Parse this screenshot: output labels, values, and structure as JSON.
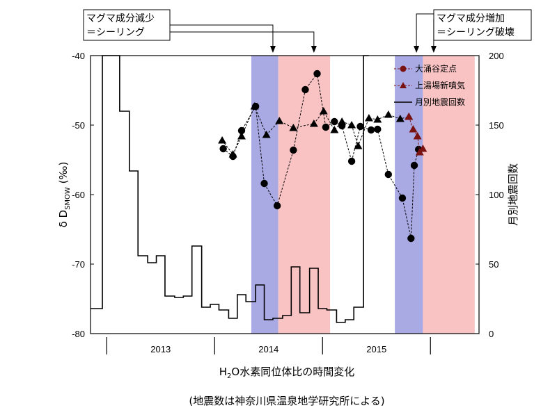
{
  "chart_data": {
    "type": "line",
    "xlabel_prefix": "H",
    "xlabel_sub": "2",
    "xlabel_suffix": "O水素同位体比の時間変化",
    "ylabel_left_delta": "δ",
    "ylabel_left_main": "D",
    "ylabel_left_sub": "SMOW",
    "ylabel_left_unit": "(‰)",
    "ylabel_right": "月別地震回数",
    "caption": "(地震数は神奈川県温泉地学研究所による)",
    "ylim_left": [
      -80,
      -40
    ],
    "ylim_right": [
      0,
      200
    ],
    "left_ticks": [
      "-40",
      "-50",
      "-60",
      "-70",
      "-80"
    ],
    "right_ticks": [
      "200",
      "150",
      "100",
      "50",
      "0"
    ],
    "year_labels": [
      {
        "year": 2013,
        "label": "2013"
      },
      {
        "year": 2014,
        "label": "2014"
      },
      {
        "year": 2015,
        "label": "2015"
      }
    ],
    "year_boundaries": [
      2012.0,
      2013.0,
      2014.0,
      2015.0
    ],
    "bands": [
      {
        "kind": "decrease",
        "start": 2013.49,
        "end": 2013.74,
        "color": "#a9aae4"
      },
      {
        "kind": "increase",
        "start": 2013.74,
        "end": 2014.22,
        "color": "#f9c3c3"
      },
      {
        "kind": "decrease",
        "start": 2014.82,
        "end": 2015.08,
        "color": "#a9aae4"
      },
      {
        "kind": "increase",
        "start": 2015.08,
        "end": 2015.56,
        "color": "#f9c3c3"
      }
    ],
    "annotations": [
      {
        "line1": "マグマ成分減少",
        "line2": "＝シーリング",
        "targets": [
          2013.69,
          2014.07
        ]
      },
      {
        "line1": "マグマ成分増加",
        "line2": "＝シーリング破壊",
        "targets": [
          2015.18,
          2015.02
        ]
      }
    ],
    "series": [
      {
        "name": "大涌谷定点",
        "marker": "circle",
        "color": "#000000",
        "line_color": "#000000",
        "dashed": true,
        "points": [
          {
            "x": 2013.23,
            "y": -53.4
          },
          {
            "x": 2013.32,
            "y": -54.5
          },
          {
            "x": 2013.4,
            "y": -50.8
          },
          {
            "x": 2013.53,
            "y": -47.3
          },
          {
            "x": 2013.61,
            "y": -58.4
          },
          {
            "x": 2013.73,
            "y": -61.6
          },
          {
            "x": 2013.88,
            "y": -53.6
          },
          {
            "x": 2013.99,
            "y": -44.9
          },
          {
            "x": 2014.1,
            "y": -42.6
          },
          {
            "x": 2014.18,
            "y": -50.3
          },
          {
            "x": 2014.26,
            "y": -49.5
          },
          {
            "x": 2014.33,
            "y": -50.1
          },
          {
            "x": 2014.42,
            "y": -55.2
          },
          {
            "x": 2014.5,
            "y": -50.2
          },
          {
            "x": 2014.6,
            "y": -50.7
          },
          {
            "x": 2014.66,
            "y": -50.6
          },
          {
            "x": 2014.76,
            "y": -57.1
          },
          {
            "x": 2014.89,
            "y": -60.5
          },
          {
            "x": 2014.97,
            "y": -66.3
          },
          {
            "x": 2015.0,
            "y": -55.8
          },
          {
            "x": 2015.04,
            "y": -53.5
          }
        ]
      },
      {
        "name": "上湯場新噴気",
        "marker": "triangle",
        "color": "#000000",
        "line_color": "#000000",
        "dashed": true,
        "points": [
          {
            "x": 2013.22,
            "y": -52.2
          },
          {
            "x": 2013.32,
            "y": -54.2
          },
          {
            "x": 2013.4,
            "y": -51.6
          },
          {
            "x": 2013.52,
            "y": -47.3
          },
          {
            "x": 2013.63,
            "y": -51.4
          },
          {
            "x": 2013.75,
            "y": -49.4
          },
          {
            "x": 2013.88,
            "y": -50.4
          },
          {
            "x": 2014.07,
            "y": -49.8
          },
          {
            "x": 2014.16,
            "y": -48.0
          },
          {
            "x": 2014.26,
            "y": -50.7
          },
          {
            "x": 2014.33,
            "y": -49.5
          },
          {
            "x": 2014.42,
            "y": -50.0
          },
          {
            "x": 2014.48,
            "y": -53.0
          },
          {
            "x": 2014.58,
            "y": -49.0
          },
          {
            "x": 2014.66,
            "y": -49.2
          },
          {
            "x": 2014.76,
            "y": -48.5
          },
          {
            "x": 2014.87,
            "y": -49.1
          },
          {
            "x": 2014.95,
            "y": -48.8
          }
        ]
      },
      {
        "name": "上湯場新噴気",
        "marker": "triangle",
        "color": "#7a1212",
        "line_color": "#7a1212",
        "dashed": true,
        "points": [
          {
            "x": 2014.95,
            "y": -48.8
          },
          {
            "x": 2014.99,
            "y": -50.6
          },
          {
            "x": 2015.03,
            "y": -51.6
          },
          {
            "x": 2015.05,
            "y": -53.9
          },
          {
            "x": 2015.08,
            "y": -53.4
          }
        ]
      },
      {
        "name": "月別地震回数",
        "axis": "right",
        "type": "step",
        "color": "#000000",
        "points": [
          {
            "x": 2012.0,
            "y": 18
          },
          {
            "x": 2012.11,
            "y": 200
          },
          {
            "x": 2012.19,
            "y": 200
          },
          {
            "x": 2012.27,
            "y": 160
          },
          {
            "x": 2012.36,
            "y": 117
          },
          {
            "x": 2012.44,
            "y": 56
          },
          {
            "x": 2012.53,
            "y": 51
          },
          {
            "x": 2012.61,
            "y": 56
          },
          {
            "x": 2012.69,
            "y": 27
          },
          {
            "x": 2012.78,
            "y": 26
          },
          {
            "x": 2012.86,
            "y": 27
          },
          {
            "x": 2012.94,
            "y": 63
          },
          {
            "x": 2013.03,
            "y": 19
          },
          {
            "x": 2013.11,
            "y": 21
          },
          {
            "x": 2013.19,
            "y": 17
          },
          {
            "x": 2013.28,
            "y": 11
          },
          {
            "x": 2013.36,
            "y": 28
          },
          {
            "x": 2013.44,
            "y": 23
          },
          {
            "x": 2013.53,
            "y": 35
          },
          {
            "x": 2013.61,
            "y": 10
          },
          {
            "x": 2013.69,
            "y": 11
          },
          {
            "x": 2013.78,
            "y": 13
          },
          {
            "x": 2013.86,
            "y": 48
          },
          {
            "x": 2013.94,
            "y": 15
          },
          {
            "x": 2014.03,
            "y": 47
          },
          {
            "x": 2014.11,
            "y": 18
          },
          {
            "x": 2014.19,
            "y": 17
          },
          {
            "x": 2014.28,
            "y": 8
          },
          {
            "x": 2014.36,
            "y": 10
          },
          {
            "x": 2014.44,
            "y": 19
          },
          {
            "x": 2014.53,
            "y": 200
          },
          {
            "x": 2014.58,
            "y": 200
          }
        ],
        "xlim": [
          2012.0,
          2014.58
        ]
      }
    ]
  }
}
